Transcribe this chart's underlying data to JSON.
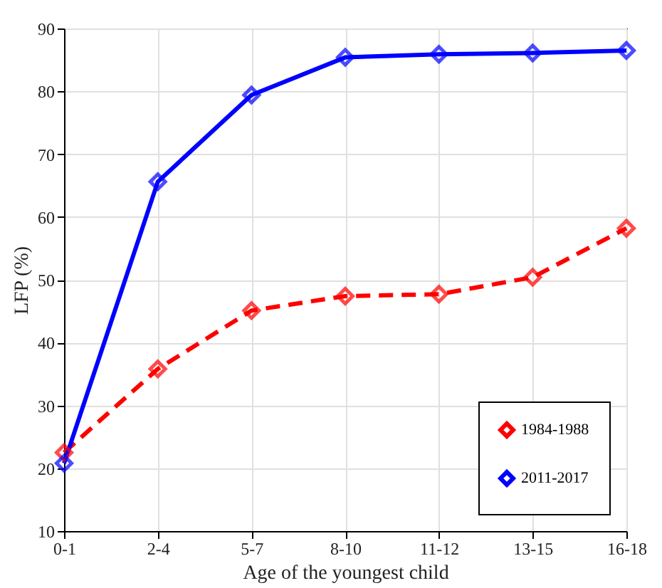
{
  "chart_data": {
    "type": "line",
    "xlabel": "Age of the youngest child",
    "ylabel": "LFP (%)",
    "categories": [
      "0-1",
      "2-4",
      "5-7",
      "8-10",
      "11-12",
      "13-15",
      "16-18"
    ],
    "series": [
      {
        "name": "1984-1988",
        "color": "#ff0000",
        "line_style": "dashed",
        "values": [
          22.5,
          35.8,
          45.1,
          47.4,
          47.7,
          50.4,
          58.2
        ]
      },
      {
        "name": "2011-2017",
        "color": "#0000ff",
        "line_style": "solid",
        "values": [
          20.8,
          65.6,
          79.4,
          85.4,
          85.9,
          86.1,
          86.5
        ]
      }
    ],
    "ylim": [
      10,
      90
    ],
    "yticks": [
      10,
      20,
      30,
      40,
      50,
      60,
      70,
      80,
      90
    ],
    "grid": true,
    "legend": "bottom right",
    "marker": "diamond"
  }
}
